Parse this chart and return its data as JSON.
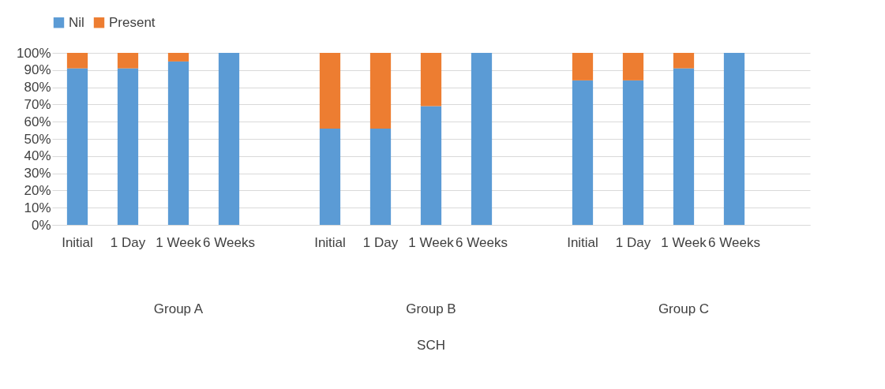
{
  "chart_data": {
    "type": "bar",
    "stacked": true,
    "categories": [
      "Initial",
      "1 Day",
      "1 Week",
      "6 Weeks",
      null,
      "Initial",
      "1 Day",
      "1 Week",
      "6 Weeks",
      null,
      "Initial",
      "1 Day",
      "1 Week",
      "6 Weeks",
      null
    ],
    "series": [
      {
        "name": "Nil",
        "color": "#5b9bd5",
        "values": [
          91,
          91,
          95,
          100,
          null,
          56,
          56,
          69,
          100,
          null,
          84,
          84,
          91,
          100,
          null
        ]
      },
      {
        "name": "Present",
        "color": "#ed7d31",
        "values": [
          9,
          9,
          5,
          0,
          null,
          44,
          44,
          31,
          0,
          null,
          16,
          16,
          9,
          0,
          null
        ]
      }
    ],
    "ylim": [
      0,
      100
    ],
    "yticks": [
      {
        "value": 0,
        "label": "0%"
      },
      {
        "value": 10,
        "label": "10%"
      },
      {
        "value": 20,
        "label": "20%"
      },
      {
        "value": 30,
        "label": "30%"
      },
      {
        "value": 40,
        "label": "40%"
      },
      {
        "value": 50,
        "label": "50%"
      },
      {
        "value": 60,
        "label": "60%"
      },
      {
        "value": 70,
        "label": "70%"
      },
      {
        "value": 80,
        "label": "80%"
      },
      {
        "value": 90,
        "label": "90%"
      },
      {
        "value": 100,
        "label": "100%"
      }
    ],
    "annotations": [
      "Group A",
      "Group B",
      "Group C",
      "SCH"
    ],
    "grid": "y",
    "legend": "top"
  }
}
